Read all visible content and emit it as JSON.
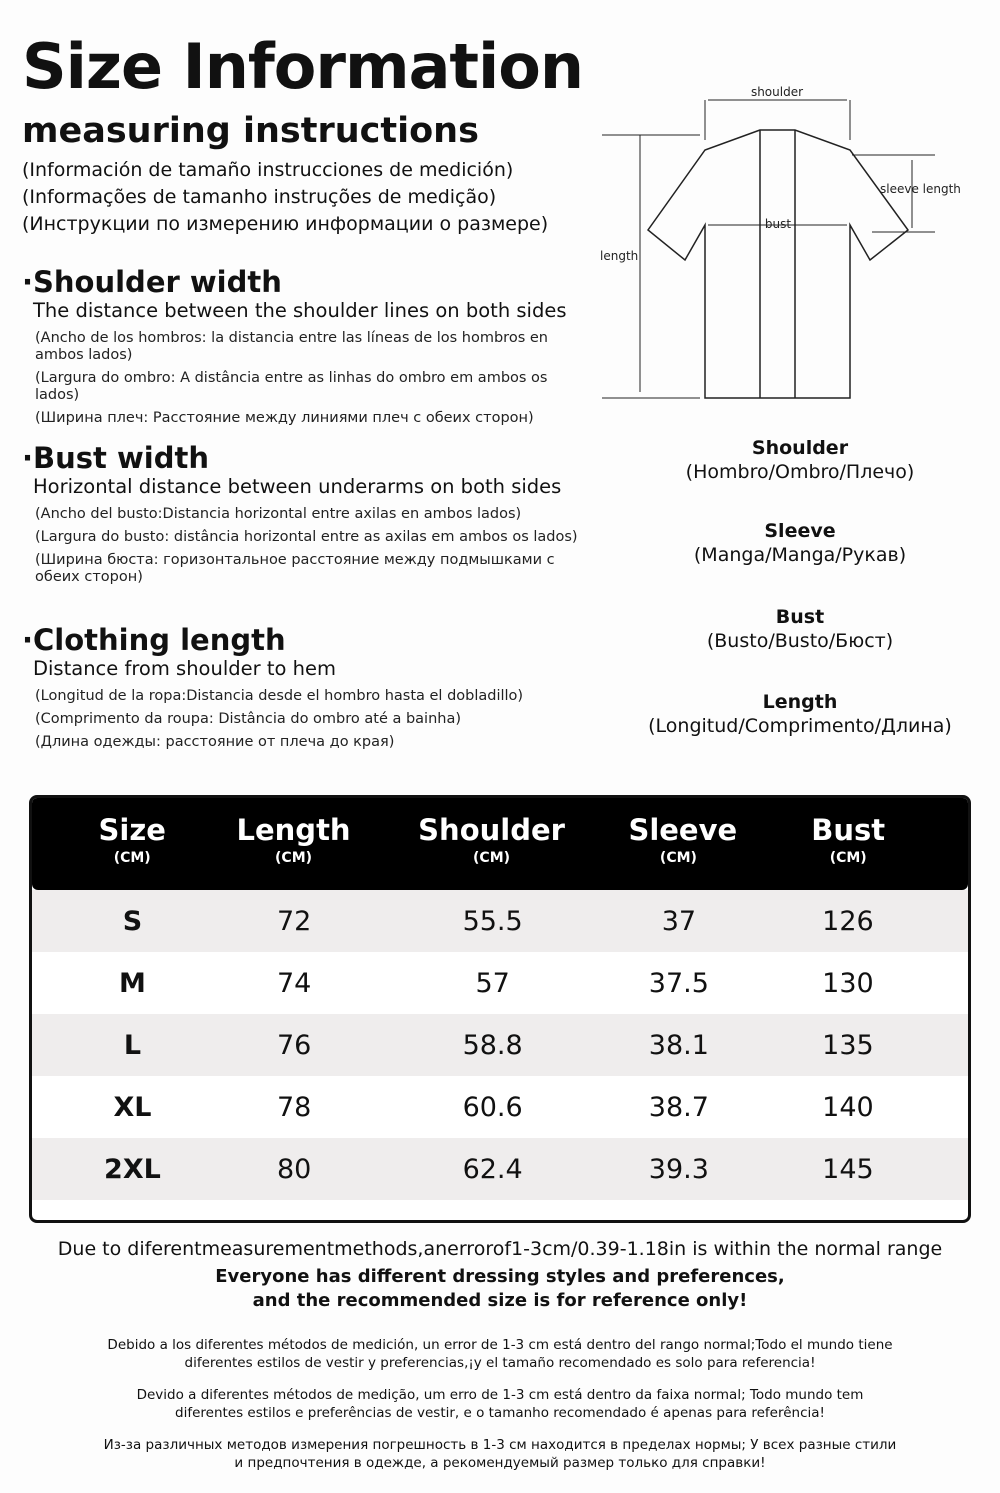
{
  "header": {
    "title": "Size Information",
    "subtitle": "measuring instructions",
    "translations": [
      "(Información de tamaño instrucciones de medición)",
      "(Informações de tamanho instruções de medição)",
      "(Инструкции по измерению информации о размере)"
    ]
  },
  "sections": [
    {
      "title": "·Shoulder width",
      "description": "The distance between the shoulder lines on both sides",
      "translations": [
        "(Ancho de los hombros: la distancia entre las líneas de los hombros en ambos lados)",
        "(Largura do ombro: A distância entre as linhas do ombro em ambos os lados)",
        "(Ширина плеч: Расстояние между линиями плеч с обеих сторон)"
      ]
    },
    {
      "title": "·Bust width",
      "description": "Horizontal distance between underarms on both sides",
      "translations": [
        "(Ancho del busto:Distancia horizontal entre axilas en ambos lados)",
        "(Largura do busto: distância horizontal entre as axilas em ambos os lados)",
        "(Ширина бюста: горизонтальное расстояние между подмышками с обеих сторон)"
      ]
    },
    {
      "title": "·Clothing length",
      "description": "Distance from shoulder to hem",
      "translations": [
        "(Longitud de la ropa:Distancia desde el hombro hasta el dobladillo)",
        "(Comprimento da roupa: Distância do ombro até a bainha)",
        "(Длина одежды: расстояние от плеча до края)"
      ]
    }
  ],
  "diagram": {
    "shoulder": "shoulder",
    "sleeve": "sleeve length",
    "bust": "bust",
    "length": "length"
  },
  "legend": [
    {
      "term": "Shoulder",
      "translation": "(Hombro/Ombro/Плечо)"
    },
    {
      "term": "Sleeve",
      "translation": "(Manga/Manga/Рукав)"
    },
    {
      "term": "Bust",
      "translation": "(Busto/Busto/Бюст)"
    },
    {
      "term": "Length",
      "translation": "(Longitud/Comprimento/Длина)"
    }
  ],
  "table": {
    "headers": [
      {
        "label": "Size",
        "unit": "(CM)"
      },
      {
        "label": "Length",
        "unit": "(CM)"
      },
      {
        "label": "Shoulder",
        "unit": "(CM)"
      },
      {
        "label": "Sleeve",
        "unit": "(CM)"
      },
      {
        "label": "Bust",
        "unit": "(CM)"
      }
    ],
    "rows": [
      [
        "S",
        "72",
        "55.5",
        "37",
        "126"
      ],
      [
        "M",
        "74",
        "57",
        "37.5",
        "130"
      ],
      [
        "L",
        "76",
        "58.8",
        "38.1",
        "135"
      ],
      [
        "XL",
        "78",
        "60.6",
        "38.7",
        "140"
      ],
      [
        "2XL",
        "80",
        "62.4",
        "39.3",
        "145"
      ]
    ]
  },
  "notes": {
    "error": "Due to diferentmeasurementmethods,anerrorof1-3cm/0.39-1.18in is within the normal range",
    "ref1": "Everyone has different dressing styles and preferences,",
    "ref2": "and the recommended size is for reference only!",
    "es": [
      "Debido a los diferentes métodos de medición, un error de 1-3 cm está dentro del rango normal;Todo el mundo tiene",
      "diferentes estilos de vestir y preferencias,¡y el tamaño recomendado es solo para referencia!"
    ],
    "pt": [
      "Devido a diferentes métodos de medição, um erro de 1-3 cm está dentro da faixa normal; Todo mundo tem",
      "diferentes estilos e preferências de vestir, e o tamanho recomendado é apenas para referência!"
    ],
    "ru": [
      "Из-за различных методов измерения погрешность в 1-3 см находится в пределах нормы; У всех разные стили",
      "и предпочтения в одежде, а рекомендуемый размер только для справки!"
    ]
  }
}
